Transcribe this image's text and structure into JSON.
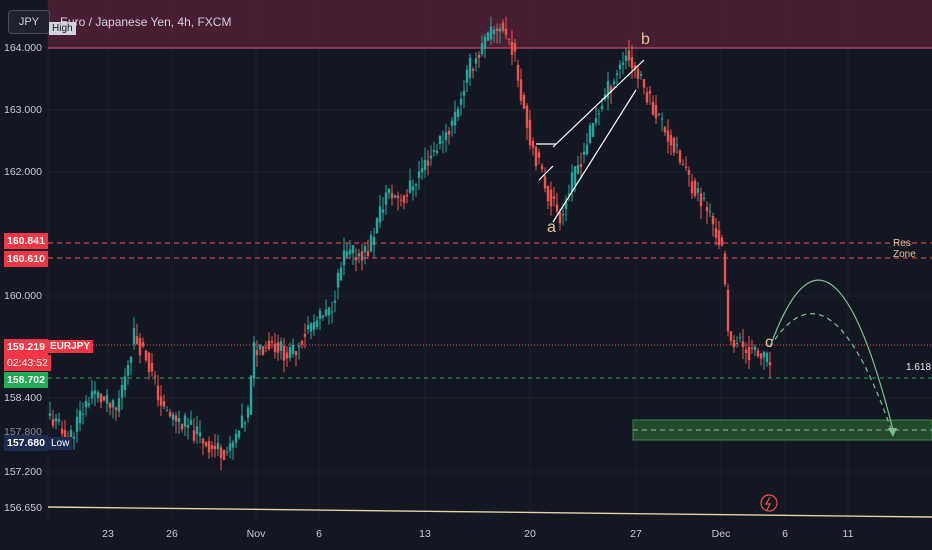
{
  "header": {
    "symbol_button": "JPY",
    "title": "Euro / Japanese Yen, 4h, FXCM"
  },
  "price_axis": {
    "ticks": [
      "164.000",
      "163.000",
      "162.000",
      "160.000",
      "158.400",
      "157.200",
      "156.650"
    ],
    "partial_tick": "157.800"
  },
  "time_axis": {
    "ticks": [
      "23",
      "26",
      "Nov",
      "6",
      "13",
      "20",
      "27",
      "Dec",
      "6",
      "11"
    ]
  },
  "tags": {
    "high": "High",
    "low_value": "157.680",
    "low": "Low",
    "res_upper": "160.841",
    "res_lower": "160.610",
    "current_price": "159.219",
    "current_symbol": "EURJPY",
    "countdown": "02:43:52",
    "support": "158.702"
  },
  "labels": {
    "res_zone": "Res Zone",
    "fib": "1.618",
    "wave_a": "a",
    "wave_b": "b",
    "wave_c": "c"
  },
  "colors": {
    "background": "#131722",
    "up": "#26a69a",
    "down": "#ef5350",
    "high_zone": "#5a2238",
    "target_zone": "#3a6b3a",
    "resistance": "#ef5350",
    "support": "#2e9e57",
    "projection": "#7fbf8f",
    "wedge": "#ffffff",
    "annotation": "#e8c29a"
  },
  "chart_data": {
    "type": "candlestick",
    "symbol": "EURJPY",
    "title": "Euro / Japanese Yen, 4h, FXCM",
    "timeframe": "4h",
    "x_ticks": [
      "23",
      "26",
      "Nov",
      "6",
      "13",
      "20",
      "27",
      "Dec",
      "6",
      "11"
    ],
    "ylim": [
      156.55,
      164.35
    ],
    "levels": {
      "high": 164.0,
      "res_upper": 160.841,
      "res_lower": 160.61,
      "current": 159.219,
      "support": 158.702,
      "low": 157.68
    },
    "target_zone": [
      157.72,
      158.0
    ],
    "key_points": {
      "wave_a": 161.3,
      "wave_b": 163.8,
      "wave_c": 159.1
    },
    "path": [
      {
        "i": 0,
        "p": 158.45
      },
      {
        "i": 6,
        "p": 158.1
      },
      {
        "i": 14,
        "p": 158.8
      },
      {
        "i": 22,
        "p": 158.5
      },
      {
        "i": 28,
        "p": 159.6
      },
      {
        "i": 32,
        "p": 159.3
      },
      {
        "i": 38,
        "p": 158.5
      },
      {
        "i": 46,
        "p": 158.3
      },
      {
        "i": 54,
        "p": 158.0
      },
      {
        "i": 60,
        "p": 157.95
      },
      {
        "i": 66,
        "p": 158.5
      },
      {
        "i": 68,
        "p": 159.4
      },
      {
        "i": 74,
        "p": 159.5
      },
      {
        "i": 80,
        "p": 159.3
      },
      {
        "i": 86,
        "p": 159.7
      },
      {
        "i": 93,
        "p": 159.9
      },
      {
        "i": 98,
        "p": 160.7
      },
      {
        "i": 106,
        "p": 160.8
      },
      {
        "i": 112,
        "p": 161.6
      },
      {
        "i": 118,
        "p": 161.55
      },
      {
        "i": 126,
        "p": 162.1
      },
      {
        "i": 134,
        "p": 162.6
      },
      {
        "i": 140,
        "p": 163.4
      },
      {
        "i": 146,
        "p": 163.8
      },
      {
        "i": 150,
        "p": 164.0
      },
      {
        "i": 154,
        "p": 163.7
      },
      {
        "i": 160,
        "p": 162.4
      },
      {
        "i": 166,
        "p": 161.6
      },
      {
        "i": 170,
        "p": 161.3
      },
      {
        "i": 176,
        "p": 162.0
      },
      {
        "i": 184,
        "p": 162.9
      },
      {
        "i": 192,
        "p": 163.6
      },
      {
        "i": 198,
        "p": 163.1
      },
      {
        "i": 204,
        "p": 162.6
      },
      {
        "i": 212,
        "p": 161.9
      },
      {
        "i": 220,
        "p": 161.3
      },
      {
        "i": 224,
        "p": 160.8
      },
      {
        "i": 226,
        "p": 159.6
      },
      {
        "i": 232,
        "p": 159.4
      },
      {
        "i": 240,
        "p": 159.2
      }
    ]
  }
}
